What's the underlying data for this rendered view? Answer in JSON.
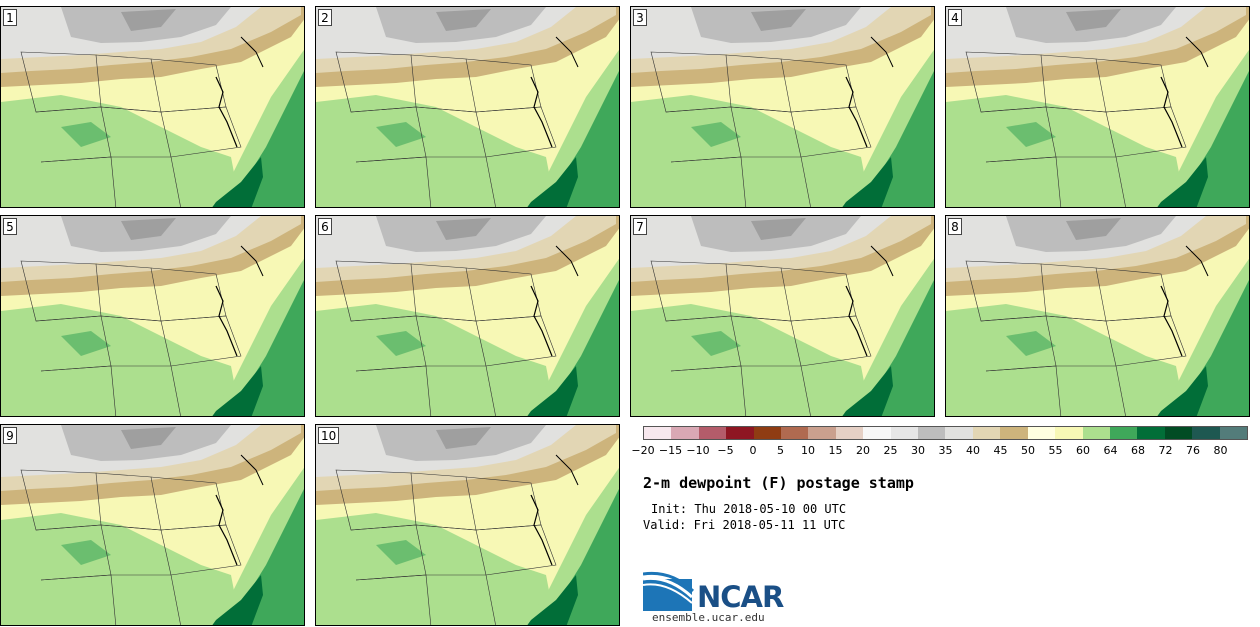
{
  "panels": [
    "1",
    "2",
    "3",
    "4",
    "5",
    "6",
    "7",
    "8",
    "9",
    "10"
  ],
  "legend": {
    "colors": [
      "#f7e8ee",
      "#d9a8b4",
      "#b45c6a",
      "#8e1622",
      "#8f3c13",
      "#b06a50",
      "#caa08e",
      "#e5d0c5",
      "#f7f7f7",
      "#e6e6e6",
      "#bdbdbd",
      "#e1e1df",
      "#e2d6b4",
      "#cdb47c",
      "#ffffe0",
      "#f7f8b5",
      "#acdf8e",
      "#3fa85a",
      "#016e38",
      "#014c24",
      "#1e5851",
      "#537c7a"
    ],
    "ticks": [
      "−20",
      "−15",
      "−10",
      "−5",
      "0",
      "5",
      "10",
      "15",
      "20",
      "25",
      "30",
      "35",
      "40",
      "45",
      "50",
      "55",
      "60",
      "64",
      "68",
      "72",
      "76",
      "80"
    ]
  },
  "title": "2-m dewpoint (F) postage stamp",
  "init": "Init: Thu 2018-05-10 00 UTC",
  "valid": "Valid: Fri 2018-05-11 11 UTC",
  "logo": {
    "text": "NCAR",
    "site": "ensemble.ucar.edu"
  }
}
